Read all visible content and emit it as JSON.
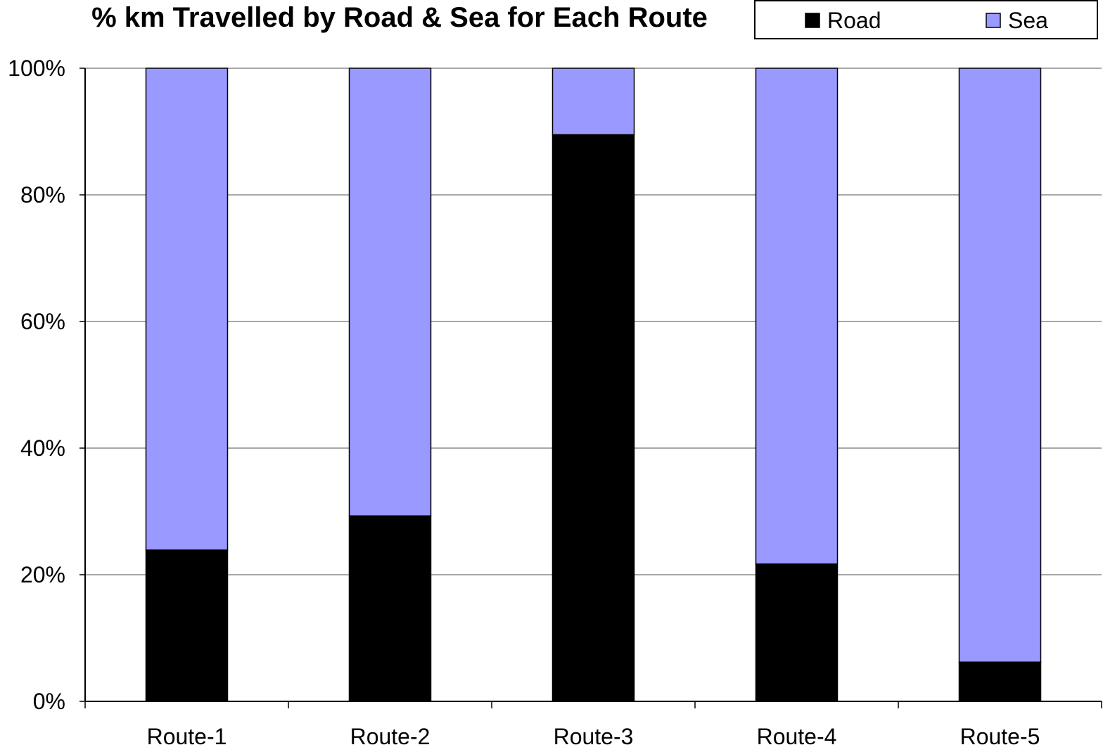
{
  "chart_data": {
    "type": "bar",
    "stacked": "percent",
    "title": "% km Travelled by Road & Sea for Each Route",
    "xlabel": "",
    "ylabel": "",
    "categories": [
      "Route-1",
      "Route-2",
      "Route-3",
      "Route-4",
      "Route-5"
    ],
    "series": [
      {
        "name": "Road",
        "color": "#000000",
        "values": [
          23.9,
          29.3,
          89.5,
          21.7,
          6.2
        ]
      },
      {
        "name": "Sea",
        "color": "#9999ff",
        "values": [
          76.1,
          70.7,
          10.5,
          78.3,
          93.8
        ]
      }
    ],
    "ylim": [
      0,
      100
    ],
    "yticks": [
      "0%",
      "20%",
      "40%",
      "60%",
      "80%",
      "100%"
    ],
    "grid": true,
    "legend": "top-right"
  }
}
